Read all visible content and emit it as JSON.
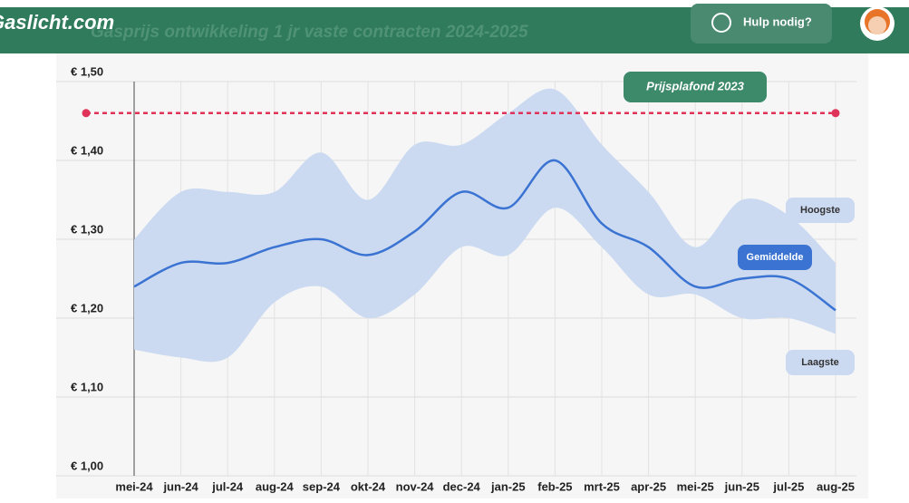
{
  "header": {
    "logo": "Gaslicht.com",
    "page_title": "Gasprijs ontwikkeling 1 jr vaste contracten 2024-2025",
    "help_button": "Hulp nodig?"
  },
  "chart_data": {
    "type": "range-line",
    "categories": [
      "mei-24",
      "jun-24",
      "jul-24",
      "aug-24",
      "sep-24",
      "okt-24",
      "nov-24",
      "dec-24",
      "jan-25",
      "feb-25",
      "mrt-25",
      "apr-25",
      "mei-25",
      "jun-25",
      "jul-25",
      "aug-25"
    ],
    "series": [
      {
        "name": "Gemiddelde",
        "color": "#3a73d2",
        "values": [
          1.24,
          1.27,
          1.27,
          1.29,
          1.3,
          1.28,
          1.31,
          1.36,
          1.34,
          1.4,
          1.32,
          1.29,
          1.24,
          1.25,
          1.25,
          1.21
        ]
      },
      {
        "name": "Hoogste",
        "color": "#cbdaf1",
        "values": [
          1.3,
          1.36,
          1.36,
          1.36,
          1.41,
          1.35,
          1.42,
          1.42,
          1.46,
          1.49,
          1.42,
          1.36,
          1.29,
          1.35,
          1.33,
          1.27
        ]
      },
      {
        "name": "Laagste",
        "color": "#cbdaf1",
        "values": [
          1.16,
          1.15,
          1.15,
          1.22,
          1.24,
          1.2,
          1.23,
          1.29,
          1.28,
          1.34,
          1.29,
          1.23,
          1.23,
          1.2,
          1.2,
          1.18
        ]
      }
    ],
    "reference_line": {
      "label": "Prijsplafond 2023",
      "value": 1.46,
      "color": "#e0335a"
    },
    "ylim": [
      1.0,
      1.5
    ],
    "yticks": [
      {
        "value": 1.0,
        "label": "€ 1,00"
      },
      {
        "value": 1.1,
        "label": "€ 1,10"
      },
      {
        "value": 1.2,
        "label": "€ 1,20"
      },
      {
        "value": 1.3,
        "label": "€ 1,30"
      },
      {
        "value": 1.4,
        "label": "€ 1,40"
      },
      {
        "value": 1.5,
        "label": "€ 1,50"
      }
    ],
    "grid": true
  }
}
